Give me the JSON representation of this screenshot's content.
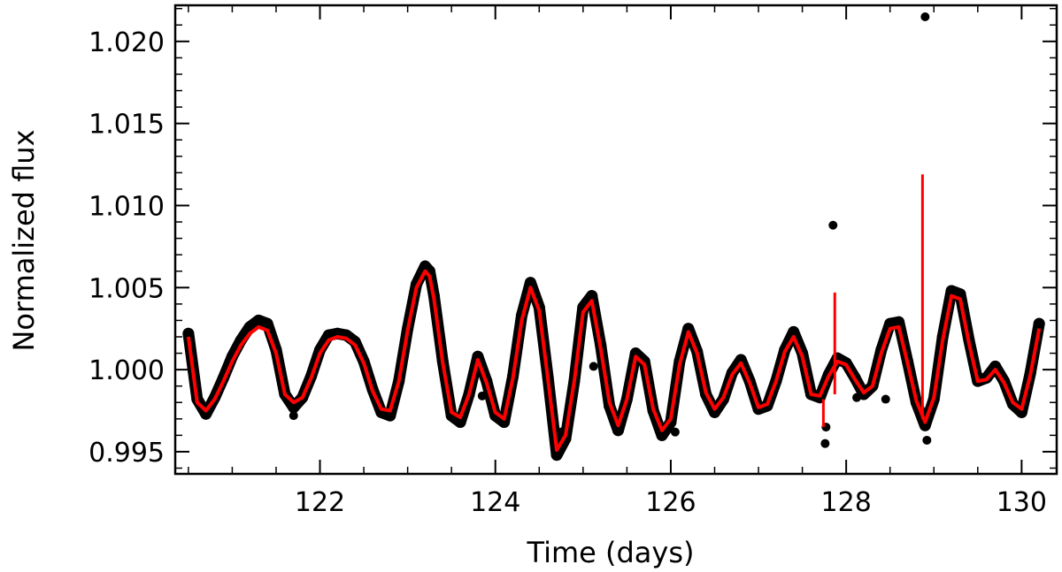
{
  "chart_data": {
    "type": "scatter",
    "title": "",
    "xlabel": "Time  (days)",
    "ylabel": "Normalized  flux",
    "xlim": [
      120.35,
      130.4
    ],
    "ylim": [
      0.99365,
      1.0222
    ],
    "x_ticks": [
      122,
      124,
      126,
      128,
      130
    ],
    "x_tick_labels": [
      "122",
      "124",
      "126",
      "128",
      "130"
    ],
    "y_ticks": [
      0.995,
      1.0,
      1.005,
      1.01,
      1.015,
      1.02
    ],
    "y_tick_labels": [
      "0.995",
      "1.000",
      "1.005",
      "1.010",
      "1.015",
      "1.020"
    ],
    "grid": false,
    "legend": null,
    "colors": {
      "data": "#000000",
      "model": "#ff0000",
      "axes": "#000000"
    },
    "series": [
      {
        "kind": "scatter",
        "color": "#000000",
        "x": [
          120.5,
          120.6,
          120.7,
          120.8,
          120.9,
          121.0,
          121.1,
          121.2,
          121.3,
          121.4,
          121.5,
          121.6,
          121.7,
          121.8,
          121.9,
          122.0,
          122.1,
          122.2,
          122.3,
          122.4,
          122.5,
          122.6,
          122.7,
          122.8,
          122.9,
          123.0,
          123.1,
          123.2,
          123.25,
          123.3,
          123.4,
          123.5,
          123.6,
          123.7,
          123.8,
          123.9,
          124.0,
          124.1,
          124.2,
          124.3,
          124.4,
          124.5,
          124.6,
          124.7,
          124.8,
          124.9,
          125.0,
          125.1,
          125.2,
          125.3,
          125.4,
          125.5,
          125.6,
          125.7,
          125.8,
          125.9,
          126.0,
          126.1,
          126.2,
          126.3,
          126.4,
          126.5,
          126.6,
          126.7,
          126.8,
          126.9,
          127.0,
          127.1,
          127.2,
          127.3,
          127.4,
          127.5,
          127.6,
          127.7,
          127.8,
          127.9,
          128.0,
          128.1,
          128.2,
          128.3,
          128.4,
          128.5,
          128.6,
          128.7,
          128.8,
          128.9,
          129.0,
          129.1,
          129.2,
          129.3,
          129.4,
          129.5,
          129.6,
          129.7,
          129.8,
          129.9,
          130.0,
          130.1,
          130.2
        ],
        "y": [
          1.0022,
          0.9982,
          0.9973,
          0.9983,
          0.9995,
          1.0008,
          1.0018,
          1.0026,
          1.003,
          1.0028,
          1.0012,
          0.9985,
          0.9977,
          0.9983,
          0.9996,
          1.0012,
          1.0021,
          1.0022,
          1.0021,
          1.0017,
          1.0005,
          0.9988,
          0.9974,
          0.9972,
          0.9993,
          1.0025,
          1.0052,
          1.0063,
          1.006,
          1.0045,
          1.0005,
          0.9972,
          0.9968,
          0.9985,
          1.0008,
          0.9993,
          0.9972,
          0.9968,
          0.9996,
          1.0033,
          1.0053,
          1.0038,
          0.9995,
          0.9948,
          0.9958,
          0.9993,
          1.0038,
          1.0045,
          1.0015,
          0.9978,
          0.9963,
          0.9982,
          1.001,
          1.0005,
          0.9975,
          0.996,
          0.9968,
          1.0005,
          1.0025,
          1.0011,
          0.9985,
          0.9974,
          0.9982,
          0.9998,
          1.0006,
          0.9993,
          0.9976,
          0.9978,
          0.9993,
          1.0012,
          1.0023,
          1.001,
          0.9985,
          0.9983,
          0.9997,
          1.0007,
          1.0004,
          0.9995,
          0.9985,
          0.999,
          1.0012,
          1.0028,
          1.0029,
          1.0005,
          0.998,
          0.9966,
          0.9982,
          1.002,
          1.0048,
          1.0046,
          1.0018,
          0.9993,
          0.9995,
          1.0002,
          0.9993,
          0.9979,
          0.9974,
          0.9998,
          1.0028
        ],
        "outliers_x": [
          121.7,
          123.85,
          124.75,
          125.12,
          126.05,
          127.76,
          127.77,
          127.85,
          128.12,
          128.45,
          128.9,
          128.92
        ],
        "outliers_y": [
          0.9972,
          0.9984,
          0.9962,
          1.0002,
          0.9962,
          0.9955,
          0.9965,
          1.0088,
          0.9983,
          0.9982,
          1.0215,
          0.9957
        ]
      },
      {
        "kind": "line",
        "color": "#ff0000",
        "x": [
          120.5,
          120.6,
          120.7,
          120.8,
          120.9,
          121.0,
          121.1,
          121.2,
          121.3,
          121.4,
          121.5,
          121.6,
          121.7,
          121.8,
          121.9,
          122.0,
          122.1,
          122.2,
          122.3,
          122.4,
          122.5,
          122.6,
          122.7,
          122.8,
          122.9,
          123.0,
          123.1,
          123.2,
          123.25,
          123.3,
          123.4,
          123.5,
          123.6,
          123.7,
          123.8,
          123.9,
          124.0,
          124.1,
          124.2,
          124.3,
          124.4,
          124.5,
          124.6,
          124.7,
          124.8,
          124.9,
          125.0,
          125.1,
          125.2,
          125.3,
          125.4,
          125.5,
          125.6,
          125.7,
          125.8,
          125.9,
          126.0,
          126.1,
          126.2,
          126.3,
          126.4,
          126.5,
          126.6,
          126.7,
          126.8,
          126.9,
          127.0,
          127.1,
          127.2,
          127.3,
          127.4,
          127.5,
          127.6,
          127.7,
          127.8,
          127.9,
          128.0,
          128.1,
          128.2,
          128.3,
          128.4,
          128.5,
          128.6,
          128.7,
          128.8,
          128.9,
          129.0,
          129.1,
          129.2,
          129.3,
          129.4,
          129.5,
          129.6,
          129.7,
          129.8,
          129.9,
          130.0,
          130.1,
          130.2
        ],
        "y": [
          1.002,
          0.998,
          0.9975,
          0.9982,
          0.9993,
          1.0005,
          1.0015,
          1.0022,
          1.0026,
          1.0024,
          1.001,
          0.9985,
          0.998,
          0.9983,
          0.9995,
          1.001,
          1.0018,
          1.002,
          1.0019,
          1.0015,
          1.0004,
          0.9987,
          0.9976,
          0.9975,
          0.9993,
          1.0024,
          1.005,
          1.006,
          1.0057,
          1.0043,
          1.0004,
          0.9974,
          0.9971,
          0.9985,
          1.0006,
          0.9992,
          0.9974,
          0.997,
          0.9995,
          1.003,
          1.005,
          1.0036,
          0.9994,
          0.9951,
          0.996,
          0.9993,
          1.0035,
          1.0042,
          1.0013,
          0.998,
          0.9966,
          0.9982,
          1.0008,
          1.0003,
          0.9976,
          0.9963,
          0.997,
          1.0003,
          1.0023,
          1.001,
          0.9986,
          0.9976,
          0.9983,
          0.9997,
          1.0004,
          0.9992,
          0.9977,
          0.9979,
          0.9993,
          1.0011,
          1.002,
          1.0008,
          0.9985,
          0.9984,
          0.9996,
          1.0005,
          1.0003,
          0.9994,
          0.9986,
          0.999,
          1.001,
          1.0025,
          1.0026,
          1.0004,
          0.9981,
          0.9968,
          0.9983,
          1.0018,
          1.0045,
          1.0043,
          1.0016,
          0.9993,
          0.9994,
          1.0,
          0.9992,
          0.998,
          0.9976,
          0.9997,
          1.0025
        ],
        "spikes": [
          {
            "x": 127.87,
            "y0": 0.9985,
            "y1": 1.0047
          },
          {
            "x": 128.87,
            "y0": 0.997,
            "y1": 1.0119
          },
          {
            "x": 127.74,
            "y0": 0.9982,
            "y1": 0.9965
          }
        ]
      }
    ]
  }
}
